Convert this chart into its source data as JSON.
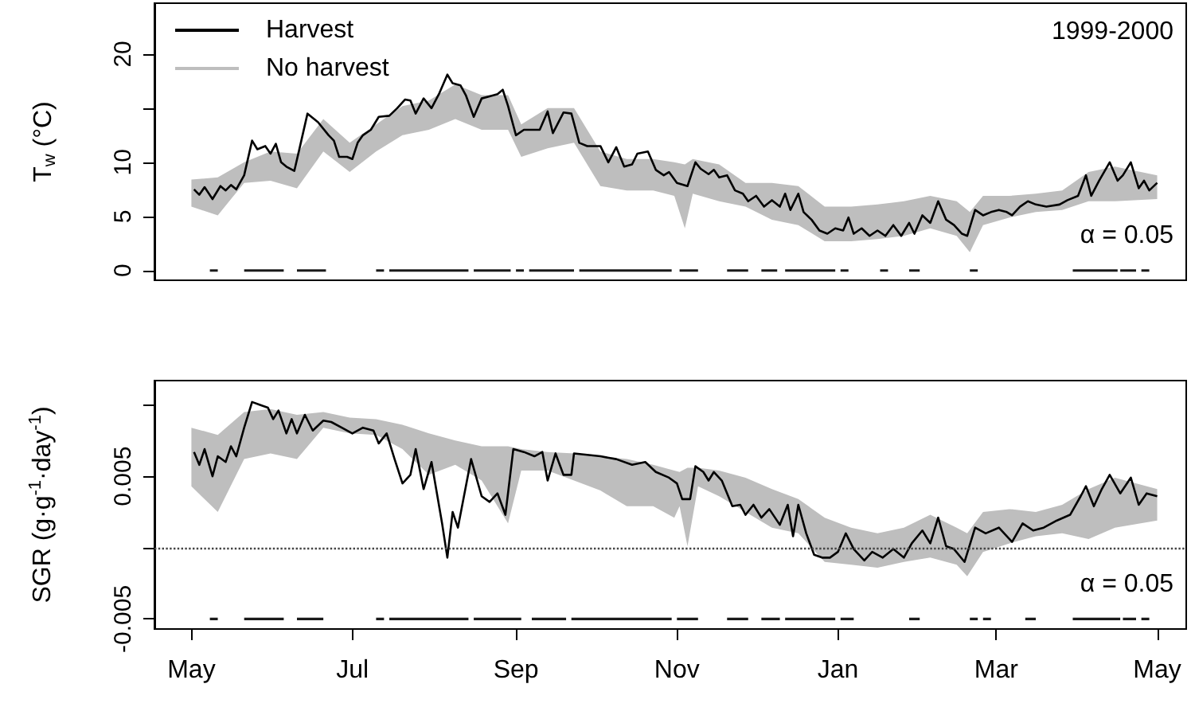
{
  "chart_data": [
    {
      "type": "line",
      "ylabel": "T$_{w}$ (°C)",
      "annotations": [
        "1999-2000",
        "α = 0.05"
      ],
      "xlim": [
        "1999-04-17",
        "2000-05-12"
      ],
      "ylim": [
        -0.9,
        24.7
      ],
      "yticks": [
        0,
        5,
        10,
        {
          "value": 15,
          "label": null
        },
        20
      ],
      "tick_labels": "y",
      "legend": "top left",
      "marker": "none",
      "series": [
        {
          "name": "Harvest",
          "color": "#000000",
          "x": [
            "1999-05-02",
            "1999-05-04",
            "1999-05-06",
            "1999-05-09",
            "1999-05-12",
            "1999-05-14",
            "1999-05-16",
            "1999-05-18",
            "1999-05-21",
            "1999-05-24",
            "1999-05-26",
            "1999-05-29",
            "1999-05-31",
            "1999-06-02",
            "1999-06-04",
            "1999-06-06",
            "1999-06-09",
            "1999-06-11",
            "1999-06-14",
            "1999-06-18",
            "1999-06-22",
            "1999-06-24",
            "1999-06-26",
            "1999-06-29",
            "1999-07-01",
            "1999-07-03",
            "1999-07-05",
            "1999-07-08",
            "1999-07-11",
            "1999-07-15",
            "1999-07-18",
            "1999-07-21",
            "1999-07-23",
            "1999-07-25",
            "1999-07-28",
            "1999-07-31",
            "1999-08-03",
            "1999-08-06",
            "1999-08-08",
            "1999-08-11",
            "1999-08-13",
            "1999-08-16",
            "1999-08-19",
            "1999-08-22",
            "1999-08-25",
            "1999-08-27",
            "1999-08-29",
            "1999-09-01",
            "1999-09-04",
            "1999-09-07",
            "1999-09-10",
            "1999-09-13",
            "1999-09-15",
            "1999-09-19",
            "1999-09-22",
            "1999-09-25",
            "1999-09-28",
            "1999-10-03",
            "1999-10-06",
            "1999-10-09",
            "1999-10-12",
            "1999-10-15",
            "1999-10-17",
            "1999-10-21",
            "1999-10-24",
            "1999-10-27",
            "1999-10-29",
            "1999-11-01",
            "1999-11-05",
            "1999-11-08",
            "1999-11-10",
            "1999-11-13",
            "1999-11-15",
            "1999-11-17",
            "1999-11-20",
            "1999-11-23",
            "1999-11-26",
            "1999-11-28",
            "1999-12-01",
            "1999-12-04",
            "1999-12-07",
            "1999-12-10",
            "1999-12-12",
            "1999-12-14",
            "1999-12-17",
            "1999-12-19",
            "1999-12-22",
            "1999-12-25",
            "1999-12-28",
            "1999-12-31",
            "2000-01-03",
            "2000-01-05",
            "2000-01-07",
            "2000-01-10",
            "2000-01-13",
            "2000-01-16",
            "2000-01-19",
            "2000-01-22",
            "2000-01-25",
            "2000-01-28",
            "2000-01-30",
            "2000-02-02",
            "2000-02-05",
            "2000-02-08",
            "2000-02-11",
            "2000-02-14",
            "2000-02-17",
            "2000-02-19",
            "2000-02-22",
            "2000-02-25",
            "2000-02-28",
            "2000-03-02",
            "2000-03-05",
            "2000-03-07",
            "2000-03-10",
            "2000-03-13",
            "2000-03-16",
            "2000-03-20",
            "2000-03-25",
            "2000-03-28",
            "2000-04-01",
            "2000-04-04",
            "2000-04-06",
            "2000-04-09",
            "2000-04-13",
            "2000-04-16",
            "2000-04-18",
            "2000-04-21",
            "2000-04-24",
            "2000-04-26",
            "2000-04-28",
            "2000-05-01"
          ],
          "values": [
            7.5,
            7.0,
            7.7,
            6.6,
            7.8,
            7.4,
            7.9,
            7.5,
            8.8,
            12.0,
            11.2,
            11.5,
            10.8,
            11.7,
            10.0,
            9.6,
            9.2,
            11.3,
            14.5,
            13.7,
            12.5,
            12.0,
            10.5,
            10.5,
            10.3,
            11.8,
            12.5,
            13.0,
            14.2,
            14.3,
            15.0,
            15.8,
            15.7,
            14.5,
            15.9,
            15.0,
            16.4,
            18.1,
            17.3,
            17.1,
            16.2,
            14.2,
            15.9,
            16.1,
            16.3,
            16.7,
            15.2,
            12.5,
            13.0,
            13.0,
            13.0,
            14.7,
            12.7,
            14.6,
            14.5,
            11.8,
            11.5,
            11.5,
            10.0,
            11.4,
            9.6,
            9.8,
            10.8,
            11.0,
            9.3,
            8.8,
            9.1,
            8.1,
            7.8,
            10.0,
            9.4,
            8.9,
            9.3,
            8.6,
            8.8,
            7.4,
            7.1,
            6.4,
            6.9,
            5.9,
            6.5,
            5.9,
            7.1,
            5.6,
            7.1,
            5.4,
            4.7,
            3.7,
            3.4,
            3.9,
            3.7,
            4.9,
            3.4,
            3.9,
            3.2,
            3.7,
            3.2,
            4.2,
            3.2,
            4.4,
            3.4,
            5.1,
            4.4,
            6.4,
            4.7,
            4.2,
            3.4,
            3.2,
            5.6,
            5.1,
            5.4,
            5.6,
            5.4,
            5.1,
            5.9,
            6.4,
            6.1,
            5.9,
            6.1,
            6.5,
            6.9,
            8.8,
            6.9,
            8.3,
            10.0,
            8.3,
            8.8,
            10.0,
            7.6,
            8.3,
            7.4,
            8.1
          ]
        },
        {
          "name": "No harvest",
          "color": "#bebebe",
          "x": [
            "1999-05-01",
            "1999-05-11",
            "1999-05-21",
            "1999-05-31",
            "1999-06-10",
            "1999-06-20",
            "1999-06-30",
            "1999-07-10",
            "1999-07-20",
            "1999-07-30",
            "1999-08-09",
            "1999-08-19",
            "1999-08-29",
            "1999-09-03",
            "1999-09-13",
            "1999-09-23",
            "1999-10-03",
            "1999-10-13",
            "1999-10-23",
            "1999-10-31",
            "1999-11-04",
            "1999-11-07",
            "1999-11-17",
            "1999-11-27",
            "1999-12-07",
            "1999-12-17",
            "1999-12-27",
            "2000-01-06",
            "2000-01-16",
            "2000-01-26",
            "2000-02-05",
            "2000-02-15",
            "2000-02-20",
            "2000-02-25",
            "2000-03-06",
            "2000-03-16",
            "2000-03-26",
            "2000-04-05",
            "2000-04-15",
            "2000-05-01"
          ],
          "values": [
            null,
            null,
            null,
            null,
            null,
            null,
            null,
            null,
            null,
            null,
            null,
            null,
            null,
            null,
            null,
            null,
            null,
            null,
            null,
            null,
            null,
            null,
            null,
            null,
            null,
            null,
            null,
            null,
            null,
            null,
            null,
            null,
            null,
            null,
            null,
            null,
            null,
            null,
            null,
            null
          ],
          "lower": [
            5.9,
            5.1,
            8.1,
            8.3,
            7.6,
            11.0,
            9.1,
            11.0,
            12.5,
            13.0,
            14.0,
            13.0,
            13.0,
            10.5,
            11.3,
            11.8,
            7.8,
            7.4,
            7.4,
            6.9,
            3.9,
            7.1,
            6.4,
            5.9,
            4.7,
            4.2,
            2.7,
            2.7,
            2.9,
            3.2,
            3.9,
            3.2,
            1.7,
            4.2,
            4.9,
            5.4,
            5.6,
            6.4,
            6.4,
            6.6
          ],
          "upper": [
            8.4,
            8.6,
            10.0,
            11.0,
            10.8,
            14.0,
            11.8,
            13.5,
            15.2,
            15.7,
            17.2,
            16.2,
            16.2,
            13.5,
            15.0,
            15.0,
            11.0,
            10.3,
            10.3,
            10.0,
            9.8,
            10.3,
            9.8,
            8.1,
            8.1,
            7.8,
            5.9,
            5.9,
            6.1,
            6.4,
            6.9,
            6.4,
            5.4,
            6.9,
            6.9,
            7.1,
            7.4,
            9.1,
            9.6,
            8.8
          ]
        },
        {
          "color": "#1a1a1a",
          "x": [
            "1999-05-08",
            "1999-05-11",
            null,
            "1999-05-21",
            "1999-06-05",
            null,
            "1999-06-10",
            "1999-06-21",
            null,
            "1999-07-10",
            "1999-07-13",
            null,
            "1999-07-15",
            "1999-08-14",
            null,
            "1999-08-16",
            "1999-08-30",
            null,
            "1999-09-01",
            "1999-09-04",
            null,
            "1999-09-06",
            "1999-09-23",
            null,
            "1999-09-25",
            "1999-10-30",
            null,
            "1999-11-02",
            "1999-11-09",
            null,
            "1999-11-20",
            "1999-11-28",
            null,
            "1999-12-03",
            "1999-12-09",
            null,
            "1999-12-12",
            "1999-12-31",
            null,
            "2000-01-02",
            "2000-01-05",
            null,
            "2000-01-17",
            "2000-01-20",
            null,
            "2000-01-28",
            "2000-02-01",
            null,
            "2000-02-20",
            "2000-02-23",
            null,
            "2000-03-30",
            "2000-04-16",
            null,
            "2000-04-17",
            "2000-04-23",
            null,
            "2000-04-25",
            "2000-04-28",
            null
          ],
          "values": [
            0,
            0,
            null,
            0,
            0,
            null,
            0,
            0,
            null,
            0,
            0,
            null,
            0,
            0,
            null,
            0,
            0,
            null,
            0,
            0,
            null,
            0,
            0,
            null,
            0,
            0,
            null,
            0,
            0,
            null,
            0,
            0,
            null,
            0,
            0,
            null,
            0,
            0,
            null,
            0,
            0,
            null,
            0,
            0,
            null,
            0,
            0,
            null,
            0,
            0,
            null,
            0,
            0,
            null,
            0,
            0,
            null,
            0,
            0,
            null
          ]
        }
      ]
    },
    {
      "type": "line",
      "ylabel": "SGR (g·g$^{-1}$·day$^{-1}$)",
      "annotations": [
        "α = 0.05"
      ],
      "xlim": [
        "1999-04-17",
        "2000-05-12"
      ],
      "xticks": [
        {
          "value": "1999-05-01",
          "label": "May"
        },
        {
          "value": "1999-07-01",
          "label": "Jul"
        },
        {
          "value": "1999-09-01",
          "label": "Sep"
        },
        {
          "value": "1999-11-01",
          "label": "Nov"
        },
        {
          "value": "2000-01-01",
          "label": "Jan"
        },
        {
          "value": "2000-03-01",
          "label": "Mar"
        },
        {
          "value": "2000-05-01",
          "label": "May"
        }
      ],
      "ylim": [
        -0.0057,
        0.0117
      ],
      "yticks": [
        -0.005,
        {
          "value": 0,
          "label": null
        },
        0.005,
        {
          "value": 0.01,
          "label": null
        }
      ],
      "marker": "none",
      "ref_lines": [
        {
          "axis": "y",
          "value": 0,
          "line_style": "dotted",
          "color": "#444444"
        }
      ],
      "series": [
        {
          "color": "#000000",
          "x": [
            "1999-05-02",
            "1999-05-04",
            "1999-05-06",
            "1999-05-09",
            "1999-05-11",
            "1999-05-14",
            "1999-05-16",
            "1999-05-18",
            "1999-05-21",
            "1999-05-24",
            "1999-05-27",
            "1999-05-30",
            "1999-06-01",
            "1999-06-03",
            "1999-06-06",
            "1999-06-08",
            "1999-06-10",
            "1999-06-13",
            "1999-06-16",
            "1999-06-20",
            "1999-06-23",
            "1999-06-27",
            "1999-07-01",
            "1999-07-05",
            "1999-07-09",
            "1999-07-11",
            "1999-07-14",
            "1999-07-17",
            "1999-07-20",
            "1999-07-23",
            "1999-07-25",
            "1999-07-28",
            "1999-07-31",
            "1999-08-04",
            "1999-08-06",
            "1999-08-08",
            "1999-08-10",
            "1999-08-15",
            "1999-08-19",
            "1999-08-22",
            "1999-08-25",
            "1999-08-28",
            "1999-08-31",
            "1999-09-04",
            "1999-09-08",
            "1999-09-11",
            "1999-09-13",
            "1999-09-16",
            "1999-09-19",
            "1999-09-22",
            "1999-09-23",
            "1999-10-03",
            "1999-10-09",
            "1999-10-15",
            "1999-10-20",
            "1999-10-24",
            "1999-10-29",
            "1999-11-01",
            "1999-11-03",
            "1999-11-06",
            "1999-11-08",
            "1999-11-11",
            "1999-11-13",
            "1999-11-15",
            "1999-11-18",
            "1999-11-22",
            "1999-11-25",
            "1999-11-27",
            "1999-11-30",
            "1999-12-03",
            "1999-12-06",
            "1999-12-10",
            "1999-12-13",
            "1999-12-15",
            "1999-12-17",
            "1999-12-20",
            "1999-12-23",
            "1999-12-26",
            "1999-12-29",
            "2000-01-01",
            "2000-01-04",
            "2000-01-07",
            "2000-01-11",
            "2000-01-14",
            "2000-01-18",
            "2000-01-22",
            "2000-01-26",
            "2000-01-29",
            "2000-02-02",
            "2000-02-05",
            "2000-02-08",
            "2000-02-11",
            "2000-02-14",
            "2000-02-18",
            "2000-02-22",
            "2000-02-26",
            "2000-03-02",
            "2000-03-07",
            "2000-03-11",
            "2000-03-15",
            "2000-03-19",
            "2000-03-24",
            "2000-03-29",
            "2000-04-02",
            "2000-04-04",
            "2000-04-07",
            "2000-04-10",
            "2000-04-13",
            "2000-04-17",
            "2000-04-21",
            "2000-04-24",
            "2000-04-27",
            "2000-05-01"
          ],
          "values": [
            0.0067,
            0.0058,
            0.0069,
            0.005,
            0.0064,
            0.006,
            0.0071,
            0.0064,
            0.0084,
            0.0102,
            0.01,
            0.0098,
            0.009,
            0.0096,
            0.008,
            0.009,
            0.008,
            0.0093,
            0.0082,
            0.0089,
            0.0088,
            0.0084,
            0.008,
            0.0084,
            0.0082,
            0.0073,
            0.008,
            0.0062,
            0.0045,
            0.0051,
            0.0069,
            0.0041,
            0.006,
            0.0017,
            -0.0007,
            0.0025,
            0.0014,
            0.0062,
            0.0036,
            0.0032,
            0.0038,
            0.0023,
            0.0069,
            0.0067,
            0.0064,
            0.0067,
            0.0047,
            0.0066,
            0.0051,
            0.0051,
            0.0066,
            0.0064,
            0.0062,
            0.0058,
            0.006,
            0.0053,
            0.0049,
            0.0045,
            0.0034,
            0.0034,
            0.0057,
            0.0053,
            0.0047,
            0.0053,
            0.0047,
            0.0029,
            0.003,
            0.0023,
            0.003,
            0.0021,
            0.0027,
            0.0016,
            0.003,
            0.0008,
            0.003,
            0.001,
            -0.0005,
            -0.0007,
            -0.0007,
            -0.0003,
            0.001,
            -0.0001,
            -0.0009,
            -0.0003,
            -0.0007,
            -0.0001,
            -0.0007,
            0.0003,
            0.0012,
            0.0003,
            0.0021,
            0.0001,
            -0.0001,
            -0.001,
            0.0014,
            0.001,
            0.0014,
            0.0004,
            0.0017,
            0.0012,
            0.0014,
            0.0019,
            0.0023,
            0.0036,
            0.0043,
            0.0029,
            0.0041,
            0.0051,
            0.0038,
            0.0049,
            0.003,
            0.0038,
            0.0036
          ]
        },
        {
          "color": "#bebebe",
          "x": [
            "1999-05-01",
            "1999-05-11",
            "1999-05-21",
            "1999-05-31",
            "1999-06-10",
            "1999-06-20",
            "1999-06-30",
            "1999-07-10",
            "1999-07-20",
            "1999-07-30",
            "1999-08-09",
            "1999-08-19",
            "1999-08-29",
            "1999-09-03",
            "1999-09-13",
            "1999-09-23",
            "1999-10-03",
            "1999-10-13",
            "1999-10-23",
            "1999-10-31",
            "1999-11-02",
            "1999-11-05",
            "1999-11-09",
            "1999-11-17",
            "1999-11-27",
            "1999-12-07",
            "1999-12-17",
            "1999-12-27",
            "2000-01-06",
            "2000-01-16",
            "2000-01-26",
            "2000-02-05",
            "2000-02-15",
            "2000-02-19",
            "2000-02-25",
            "2000-03-06",
            "2000-03-16",
            "2000-03-26",
            "2000-04-05",
            "2000-04-15",
            "2000-05-01"
          ],
          "values": [
            null,
            null,
            null,
            null,
            null,
            null,
            null,
            null,
            null,
            null,
            null,
            null,
            null,
            null,
            null,
            null,
            null,
            null,
            null,
            null,
            null,
            null,
            null,
            null,
            null,
            null,
            null,
            null,
            null,
            null,
            null,
            null,
            null,
            null,
            null,
            null,
            null,
            null,
            null,
            null,
            null
          ],
          "lower": [
            0.0043,
            0.0025,
            0.0062,
            0.0066,
            0.0062,
            0.0084,
            0.008,
            0.0079,
            0.0069,
            0.0051,
            0.0058,
            0.0047,
            0.0017,
            0.0054,
            0.0054,
            0.0047,
            0.004,
            0.0029,
            0.0029,
            0.0021,
            0.0029,
            0.0001,
            0.0043,
            0.0036,
            0.0025,
            0.0014,
            0.001,
            -0.001,
            -0.0012,
            -0.0014,
            -0.001,
            -0.0007,
            -0.0012,
            -0.002,
            -0.0003,
            0.0003,
            0.0008,
            0.001,
            0.0006,
            0.0014,
            0.0019
          ],
          "upper": [
            0.0084,
            0.0079,
            0.0095,
            0.0097,
            0.0093,
            0.0095,
            0.0091,
            0.009,
            0.0086,
            0.008,
            0.0075,
            0.0071,
            0.0071,
            0.0069,
            0.0067,
            0.0066,
            0.0064,
            0.0062,
            0.0058,
            0.0054,
            0.0053,
            0.0056,
            0.0056,
            0.0054,
            0.0049,
            0.0041,
            0.0034,
            0.0021,
            0.0014,
            0.001,
            0.0014,
            0.0023,
            0.0014,
            0.001,
            0.0025,
            0.0027,
            0.0025,
            0.003,
            0.0041,
            0.0049,
            0.0041
          ]
        },
        {
          "color": "#1a1a1a",
          "x": [
            "1999-05-08",
            "1999-05-11",
            null,
            "1999-05-21",
            "1999-06-05",
            null,
            "1999-06-10",
            "1999-06-20",
            null,
            "1999-07-10",
            "1999-07-13",
            null,
            "1999-07-15",
            "1999-08-14",
            null,
            "1999-08-16",
            "1999-09-03",
            null,
            "1999-09-07",
            "1999-09-20",
            null,
            "1999-09-22",
            "1999-10-30",
            null,
            "1999-11-01",
            "1999-11-09",
            null,
            "1999-11-20",
            "1999-11-28",
            null,
            "1999-12-03",
            "1999-12-10",
            null,
            "1999-12-12",
            "1999-12-31",
            null,
            "2000-01-02",
            "2000-01-07",
            null,
            "2000-01-28",
            "2000-02-01",
            null,
            "2000-02-20",
            "2000-02-23",
            null,
            "2000-02-25",
            "2000-02-28",
            null,
            "2000-03-12",
            "2000-03-16",
            null,
            "2000-03-30",
            "2000-04-17",
            null,
            "2000-04-18",
            "2000-04-23",
            null,
            "2000-04-25",
            "2000-04-28",
            null
          ],
          "values": [
            -0.005,
            -0.005,
            null,
            -0.005,
            -0.005,
            null,
            -0.005,
            -0.005,
            null,
            -0.005,
            -0.005,
            null,
            -0.005,
            -0.005,
            null,
            -0.005,
            -0.005,
            null,
            -0.005,
            -0.005,
            null,
            -0.005,
            -0.005,
            null,
            -0.005,
            -0.005,
            null,
            -0.005,
            -0.005,
            null,
            -0.005,
            -0.005,
            null,
            -0.005,
            -0.005,
            null,
            -0.005,
            -0.005,
            null,
            -0.005,
            -0.005,
            null,
            -0.005,
            -0.005,
            null,
            -0.005,
            -0.005,
            null,
            -0.005,
            -0.005,
            null,
            -0.005,
            -0.005,
            null,
            -0.005,
            -0.005,
            null,
            -0.005,
            -0.005,
            null
          ]
        }
      ]
    }
  ]
}
